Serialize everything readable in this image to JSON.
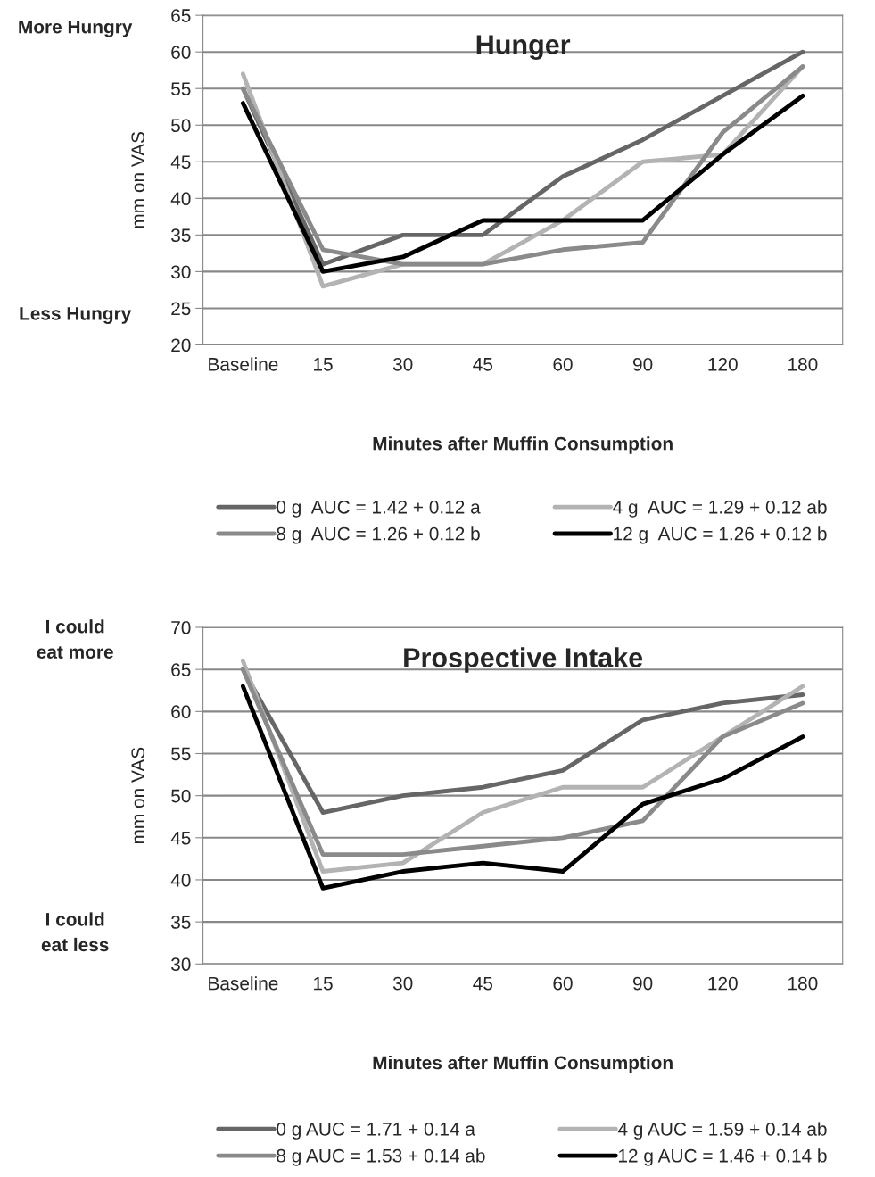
{
  "chart_data": [
    {
      "type": "line",
      "title": "Hunger",
      "xlabel": "Minutes after Muffin Consumption",
      "ylabel": "mm on VAS",
      "categories": [
        "Baseline",
        "15",
        "30",
        "45",
        "60",
        "90",
        "120",
        "180"
      ],
      "series": [
        {
          "name": "0 g  AUC = 1.42 + 0.12 a",
          "color": "#666666",
          "values": [
            55,
            31,
            35,
            35,
            43,
            48,
            54,
            60
          ]
        },
        {
          "name": "4 g  AUC = 1.29 + 0.12 ab",
          "color": "#b3b3b3",
          "values": [
            57,
            28,
            31,
            31,
            37,
            45,
            46,
            58
          ]
        },
        {
          "name": "8 g  AUC = 1.26 + 0.12 b",
          "color": "#8a8a8a",
          "values": [
            55,
            33,
            31,
            31,
            33,
            34,
            49,
            58
          ]
        },
        {
          "name": "12 g  AUC = 1.26 + 0.12 b",
          "color": "#000000",
          "values": [
            53,
            30,
            32,
            37,
            37,
            37,
            46,
            54
          ]
        }
      ],
      "ylim": [
        20,
        65
      ],
      "yticks": [
        20,
        25,
        30,
        35,
        40,
        45,
        50,
        55,
        60,
        65
      ],
      "grid": "y",
      "legend": "bottom",
      "marker": "none",
      "line_style": "solid",
      "annotations": [
        "More Hungry",
        "Less Hungry"
      ]
    },
    {
      "type": "line",
      "title": "Prospective Intake",
      "xlabel": "Minutes after Muffin Consumption",
      "ylabel": "mm on VAS",
      "categories": [
        "Baseline",
        "15",
        "30",
        "45",
        "60",
        "90",
        "120",
        "180"
      ],
      "series": [
        {
          "name": "0 g AUC = 1.71 + 0.14 a",
          "color": "#666666",
          "values": [
            65,
            48,
            50,
            51,
            53,
            59,
            61,
            62
          ]
        },
        {
          "name": "4 g AUC = 1.59 + 0.14 ab",
          "color": "#b3b3b3",
          "values": [
            66,
            41,
            42,
            48,
            51,
            51,
            57,
            63
          ]
        },
        {
          "name": "8 g AUC = 1.53 + 0.14 ab",
          "color": "#8a8a8a",
          "values": [
            65,
            43,
            43,
            44,
            45,
            47,
            57,
            61
          ]
        },
        {
          "name": "12 g AUC = 1.46 + 0.14 b",
          "color": "#000000",
          "values": [
            63,
            39,
            41,
            42,
            41,
            49,
            52,
            57
          ]
        }
      ],
      "ylim": [
        30,
        70
      ],
      "yticks": [
        30,
        35,
        40,
        45,
        50,
        55,
        60,
        65,
        70
      ],
      "grid": "y",
      "legend": "bottom",
      "marker": "none",
      "line_style": "solid",
      "annotations": [
        "I could\neat more",
        "I could\neat less"
      ]
    }
  ]
}
